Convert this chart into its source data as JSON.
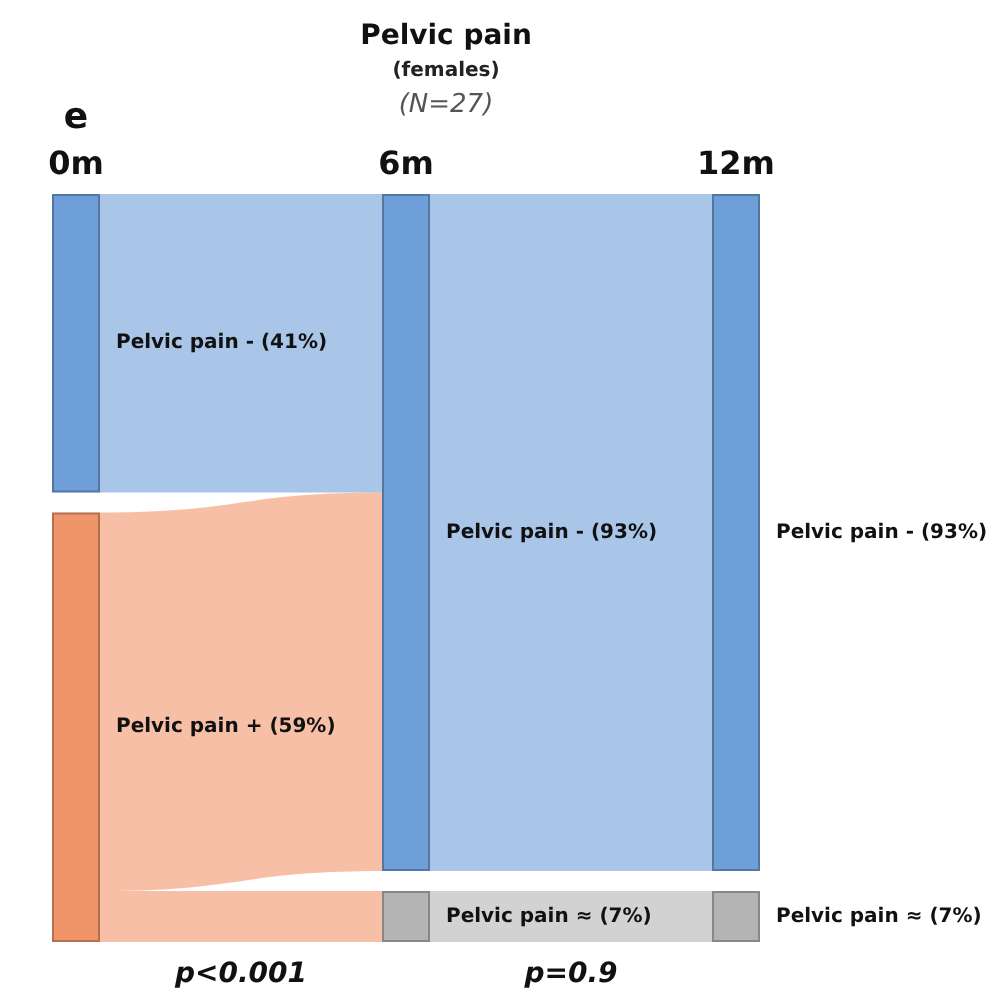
{
  "chart_data": {
    "type": "other",
    "title": "Pelvic pain",
    "subtitle": "(females)",
    "categories": [
      "0m",
      "6m",
      "12m"
    ],
    "series": [
      {
        "color": "#6f9fd8",
        "values": [
          41,
          93,
          93
        ],
        "value_labels": [
          "Pelvic pain - (41%)",
          "Pelvic pain - (93%)",
          "Pelvic pain - (93%)"
        ]
      },
      {
        "color": "#f0956a",
        "values": [
          59,
          null,
          null
        ],
        "value_labels": [
          "Pelvic pain + (59%)",
          null,
          null
        ]
      },
      {
        "color": "#b4b4b4",
        "values": [
          null,
          7,
          7
        ],
        "value_labels": [
          null,
          "Pelvic pain ≈ (7%)",
          "Pelvic pain ≈ (7%)"
        ]
      }
    ],
    "annotations": [
      "e",
      "(N=27)",
      "p<0.001",
      "p=0.9"
    ]
  }
}
